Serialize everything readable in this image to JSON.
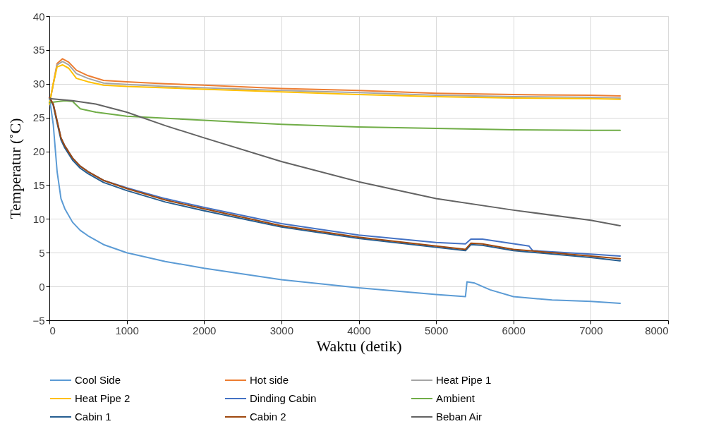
{
  "chart_data": {
    "type": "line",
    "xlabel": "Waktu (detik)",
    "ylabel": "Temperatur (˚C)",
    "xlim": [
      0,
      8000
    ],
    "xticks": [
      0,
      1000,
      2000,
      3000,
      4000,
      5000,
      6000,
      7000,
      8000
    ],
    "ylim": [
      -5,
      40
    ],
    "yticks": [
      -5,
      0,
      5,
      10,
      15,
      20,
      25,
      30,
      35,
      40
    ],
    "grid": true,
    "legend": "bottom",
    "line_style": "solid",
    "series": [
      {
        "name": "Cool Side",
        "color": "#5b9bd5",
        "x": [
          0,
          50,
          100,
          150,
          200,
          300,
          400,
          500,
          700,
          1000,
          1500,
          2000,
          3000,
          4000,
          5000,
          5380,
          5400,
          5500,
          5700,
          6000,
          6500,
          7000,
          7380
        ],
        "values": [
          28,
          24,
          17,
          13,
          11.5,
          9.5,
          8.3,
          7.5,
          6.2,
          5,
          3.7,
          2.7,
          1,
          -0.2,
          -1.2,
          -1.5,
          0.7,
          0.5,
          -0.5,
          -1.5,
          -2,
          -2.2,
          -2.5
        ]
      },
      {
        "name": "Hot side",
        "color": "#ed7d31",
        "x": [
          0,
          50,
          100,
          170,
          250,
          350,
          500,
          700,
          1000,
          1500,
          2000,
          3000,
          4000,
          5000,
          6000,
          7000,
          7380
        ],
        "values": [
          27,
          30,
          33,
          33.7,
          33.2,
          32,
          31.2,
          30.5,
          30.3,
          30,
          29.8,
          29.3,
          29,
          28.6,
          28.4,
          28.3,
          28.2
        ]
      },
      {
        "name": "Heat Pipe 1",
        "color": "#a5a5a5",
        "x": [
          0,
          100,
          170,
          250,
          350,
          500,
          700,
          1000,
          1500,
          2000,
          3000,
          4000,
          5000,
          6000,
          7000,
          7380
        ],
        "values": [
          27,
          32.8,
          33.3,
          32.8,
          31.5,
          30.8,
          30.1,
          29.9,
          29.6,
          29.4,
          29,
          28.7,
          28.3,
          28.1,
          28,
          27.9
        ]
      },
      {
        "name": "Heat Pipe 2",
        "color": "#ffc000",
        "x": [
          0,
          50,
          100,
          170,
          250,
          350,
          500,
          700,
          1000,
          1500,
          2000,
          3000,
          4000,
          5000,
          6000,
          7000,
          7380
        ],
        "values": [
          27,
          30,
          32.5,
          32.8,
          32.3,
          30.8,
          30.3,
          29.8,
          29.6,
          29.4,
          29.2,
          28.8,
          28.4,
          28.1,
          27.9,
          27.8,
          27.7
        ]
      },
      {
        "name": "Dinding Cabin",
        "color": "#4472c4",
        "x": [
          0,
          50,
          100,
          150,
          200,
          300,
          400,
          500,
          700,
          1000,
          1500,
          2000,
          3000,
          4000,
          5000,
          5380,
          5450,
          5600,
          6200,
          6250,
          7000,
          7380
        ],
        "values": [
          28,
          27,
          24.5,
          22,
          20.8,
          19,
          17.8,
          17,
          15.7,
          14.6,
          13,
          11.7,
          9.3,
          7.6,
          6.5,
          6.3,
          7,
          7,
          6,
          5.3,
          4.8,
          4.5
        ]
      },
      {
        "name": "Ambient",
        "color": "#70ad47",
        "x": [
          0,
          200,
          300,
          400,
          600,
          1000,
          2000,
          3000,
          4000,
          5000,
          6000,
          7000,
          7380
        ],
        "values": [
          27.2,
          27.5,
          27.4,
          26.3,
          25.8,
          25.2,
          24.6,
          24,
          23.6,
          23.4,
          23.2,
          23.1,
          23.1
        ]
      },
      {
        "name": "Cabin 1",
        "color": "#255e91",
        "x": [
          0,
          50,
          100,
          150,
          200,
          300,
          400,
          500,
          700,
          1000,
          1500,
          2000,
          3000,
          4000,
          5000,
          5380,
          5450,
          5600,
          6000,
          7000,
          7380
        ],
        "values": [
          28,
          26.8,
          24.2,
          21.7,
          20.5,
          18.7,
          17.5,
          16.7,
          15.4,
          14.2,
          12.5,
          11.2,
          8.8,
          7.1,
          5.8,
          5.3,
          6.2,
          6.1,
          5.3,
          4.3,
          3.8
        ]
      },
      {
        "name": "Cabin 2",
        "color": "#9e480e",
        "x": [
          0,
          50,
          100,
          150,
          200,
          300,
          400,
          500,
          700,
          1000,
          1500,
          2000,
          3000,
          4000,
          5000,
          5380,
          5450,
          5600,
          6000,
          7000,
          7380
        ],
        "values": [
          28,
          27,
          24.5,
          22,
          20.8,
          19,
          17.8,
          17,
          15.7,
          14.5,
          12.8,
          11.5,
          9,
          7.3,
          6,
          5.5,
          6.4,
          6.3,
          5.5,
          4.5,
          4.1
        ]
      },
      {
        "name": "Beban Air",
        "color": "#636363",
        "x": [
          0,
          300,
          600,
          1000,
          1500,
          2000,
          3000,
          4000,
          5000,
          6000,
          7000,
          7380
        ],
        "values": [
          27.8,
          27.5,
          27,
          25.8,
          23.8,
          22,
          18.5,
          15.5,
          13,
          11.3,
          9.8,
          9
        ]
      }
    ]
  }
}
